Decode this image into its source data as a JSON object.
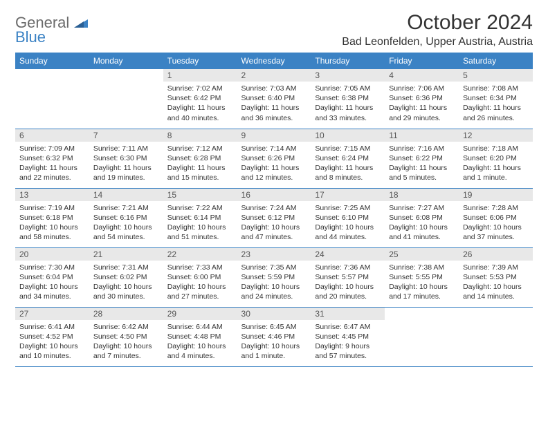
{
  "brand": {
    "general": "General",
    "blue": "Blue"
  },
  "header": {
    "title": "October 2024",
    "location": "Bad Leonfelden, Upper Austria, Austria"
  },
  "colors": {
    "accent": "#3b82c4",
    "header_row_bg": "#3b82c4",
    "header_row_text": "#ffffff",
    "daynum_bg": "#e8e8e8",
    "background": "#ffffff",
    "text": "#333333"
  },
  "weekdays": [
    "Sunday",
    "Monday",
    "Tuesday",
    "Wednesday",
    "Thursday",
    "Friday",
    "Saturday"
  ],
  "weeks": [
    [
      null,
      null,
      {
        "n": "1",
        "sr": "Sunrise: 7:02 AM",
        "ss": "Sunset: 6:42 PM",
        "dl": "Daylight: 11 hours and 40 minutes."
      },
      {
        "n": "2",
        "sr": "Sunrise: 7:03 AM",
        "ss": "Sunset: 6:40 PM",
        "dl": "Daylight: 11 hours and 36 minutes."
      },
      {
        "n": "3",
        "sr": "Sunrise: 7:05 AM",
        "ss": "Sunset: 6:38 PM",
        "dl": "Daylight: 11 hours and 33 minutes."
      },
      {
        "n": "4",
        "sr": "Sunrise: 7:06 AM",
        "ss": "Sunset: 6:36 PM",
        "dl": "Daylight: 11 hours and 29 minutes."
      },
      {
        "n": "5",
        "sr": "Sunrise: 7:08 AM",
        "ss": "Sunset: 6:34 PM",
        "dl": "Daylight: 11 hours and 26 minutes."
      }
    ],
    [
      {
        "n": "6",
        "sr": "Sunrise: 7:09 AM",
        "ss": "Sunset: 6:32 PM",
        "dl": "Daylight: 11 hours and 22 minutes."
      },
      {
        "n": "7",
        "sr": "Sunrise: 7:11 AM",
        "ss": "Sunset: 6:30 PM",
        "dl": "Daylight: 11 hours and 19 minutes."
      },
      {
        "n": "8",
        "sr": "Sunrise: 7:12 AM",
        "ss": "Sunset: 6:28 PM",
        "dl": "Daylight: 11 hours and 15 minutes."
      },
      {
        "n": "9",
        "sr": "Sunrise: 7:14 AM",
        "ss": "Sunset: 6:26 PM",
        "dl": "Daylight: 11 hours and 12 minutes."
      },
      {
        "n": "10",
        "sr": "Sunrise: 7:15 AM",
        "ss": "Sunset: 6:24 PM",
        "dl": "Daylight: 11 hours and 8 minutes."
      },
      {
        "n": "11",
        "sr": "Sunrise: 7:16 AM",
        "ss": "Sunset: 6:22 PM",
        "dl": "Daylight: 11 hours and 5 minutes."
      },
      {
        "n": "12",
        "sr": "Sunrise: 7:18 AM",
        "ss": "Sunset: 6:20 PM",
        "dl": "Daylight: 11 hours and 1 minute."
      }
    ],
    [
      {
        "n": "13",
        "sr": "Sunrise: 7:19 AM",
        "ss": "Sunset: 6:18 PM",
        "dl": "Daylight: 10 hours and 58 minutes."
      },
      {
        "n": "14",
        "sr": "Sunrise: 7:21 AM",
        "ss": "Sunset: 6:16 PM",
        "dl": "Daylight: 10 hours and 54 minutes."
      },
      {
        "n": "15",
        "sr": "Sunrise: 7:22 AM",
        "ss": "Sunset: 6:14 PM",
        "dl": "Daylight: 10 hours and 51 minutes."
      },
      {
        "n": "16",
        "sr": "Sunrise: 7:24 AM",
        "ss": "Sunset: 6:12 PM",
        "dl": "Daylight: 10 hours and 47 minutes."
      },
      {
        "n": "17",
        "sr": "Sunrise: 7:25 AM",
        "ss": "Sunset: 6:10 PM",
        "dl": "Daylight: 10 hours and 44 minutes."
      },
      {
        "n": "18",
        "sr": "Sunrise: 7:27 AM",
        "ss": "Sunset: 6:08 PM",
        "dl": "Daylight: 10 hours and 41 minutes."
      },
      {
        "n": "19",
        "sr": "Sunrise: 7:28 AM",
        "ss": "Sunset: 6:06 PM",
        "dl": "Daylight: 10 hours and 37 minutes."
      }
    ],
    [
      {
        "n": "20",
        "sr": "Sunrise: 7:30 AM",
        "ss": "Sunset: 6:04 PM",
        "dl": "Daylight: 10 hours and 34 minutes."
      },
      {
        "n": "21",
        "sr": "Sunrise: 7:31 AM",
        "ss": "Sunset: 6:02 PM",
        "dl": "Daylight: 10 hours and 30 minutes."
      },
      {
        "n": "22",
        "sr": "Sunrise: 7:33 AM",
        "ss": "Sunset: 6:00 PM",
        "dl": "Daylight: 10 hours and 27 minutes."
      },
      {
        "n": "23",
        "sr": "Sunrise: 7:35 AM",
        "ss": "Sunset: 5:59 PM",
        "dl": "Daylight: 10 hours and 24 minutes."
      },
      {
        "n": "24",
        "sr": "Sunrise: 7:36 AM",
        "ss": "Sunset: 5:57 PM",
        "dl": "Daylight: 10 hours and 20 minutes."
      },
      {
        "n": "25",
        "sr": "Sunrise: 7:38 AM",
        "ss": "Sunset: 5:55 PM",
        "dl": "Daylight: 10 hours and 17 minutes."
      },
      {
        "n": "26",
        "sr": "Sunrise: 7:39 AM",
        "ss": "Sunset: 5:53 PM",
        "dl": "Daylight: 10 hours and 14 minutes."
      }
    ],
    [
      {
        "n": "27",
        "sr": "Sunrise: 6:41 AM",
        "ss": "Sunset: 4:52 PM",
        "dl": "Daylight: 10 hours and 10 minutes."
      },
      {
        "n": "28",
        "sr": "Sunrise: 6:42 AM",
        "ss": "Sunset: 4:50 PM",
        "dl": "Daylight: 10 hours and 7 minutes."
      },
      {
        "n": "29",
        "sr": "Sunrise: 6:44 AM",
        "ss": "Sunset: 4:48 PM",
        "dl": "Daylight: 10 hours and 4 minutes."
      },
      {
        "n": "30",
        "sr": "Sunrise: 6:45 AM",
        "ss": "Sunset: 4:46 PM",
        "dl": "Daylight: 10 hours and 1 minute."
      },
      {
        "n": "31",
        "sr": "Sunrise: 6:47 AM",
        "ss": "Sunset: 4:45 PM",
        "dl": "Daylight: 9 hours and 57 minutes."
      },
      null,
      null
    ]
  ]
}
